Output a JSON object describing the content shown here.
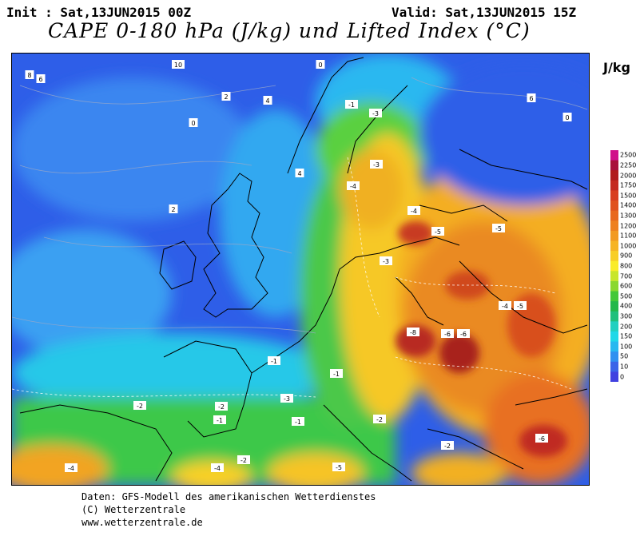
{
  "header": {
    "init": "Init : Sat,13JUN2015 00Z",
    "valid": "Valid: Sat,13JUN2015 15Z",
    "title": "CAPE 0-180 hPa (J/kg) und Lifted Index (°C)",
    "unit": "J/kg"
  },
  "colorbar": {
    "labels": [
      "2500",
      "2250",
      "2000",
      "1750",
      "1500",
      "1400",
      "1300",
      "1200",
      "1100",
      "1000",
      "900",
      "800",
      "700",
      "600",
      "500",
      "400",
      "300",
      "200",
      "150",
      "100",
      "50",
      "10",
      "0"
    ],
    "colors": [
      "#d0108a",
      "#a8103c",
      "#b01c1c",
      "#c42a20",
      "#d83e20",
      "#e0521e",
      "#e8681e",
      "#ee8020",
      "#f29a22",
      "#f6b424",
      "#f8ce26",
      "#faec2a",
      "#c8e62c",
      "#8ad82e",
      "#44c838",
      "#22b84a",
      "#20c07c",
      "#22d0c0",
      "#20d8e8",
      "#28b8f0",
      "#3090f0",
      "#3a64e8",
      "#4040e0"
    ]
  },
  "lifted_index_labels": [
    "10",
    "8",
    "6",
    "6",
    "4",
    "4",
    "2",
    "2",
    "0",
    "0",
    "0",
    "-1",
    "-1",
    "-1",
    "-1",
    "-1",
    "-2",
    "-2",
    "-2",
    "-2",
    "-2",
    "-3",
    "-3",
    "-3",
    "-3",
    "-4",
    "-4",
    "-4",
    "-4",
    "-4",
    "-5",
    "-5",
    "-5",
    "-5",
    "-6",
    "-6",
    "-6",
    "-8",
    "-8"
  ],
  "footer": {
    "line1": "Daten: GFS-Modell des amerikanischen Wetterdienstes",
    "line2": "(C) Wetterzentrale",
    "line3": "www.wetterzentrale.de"
  }
}
